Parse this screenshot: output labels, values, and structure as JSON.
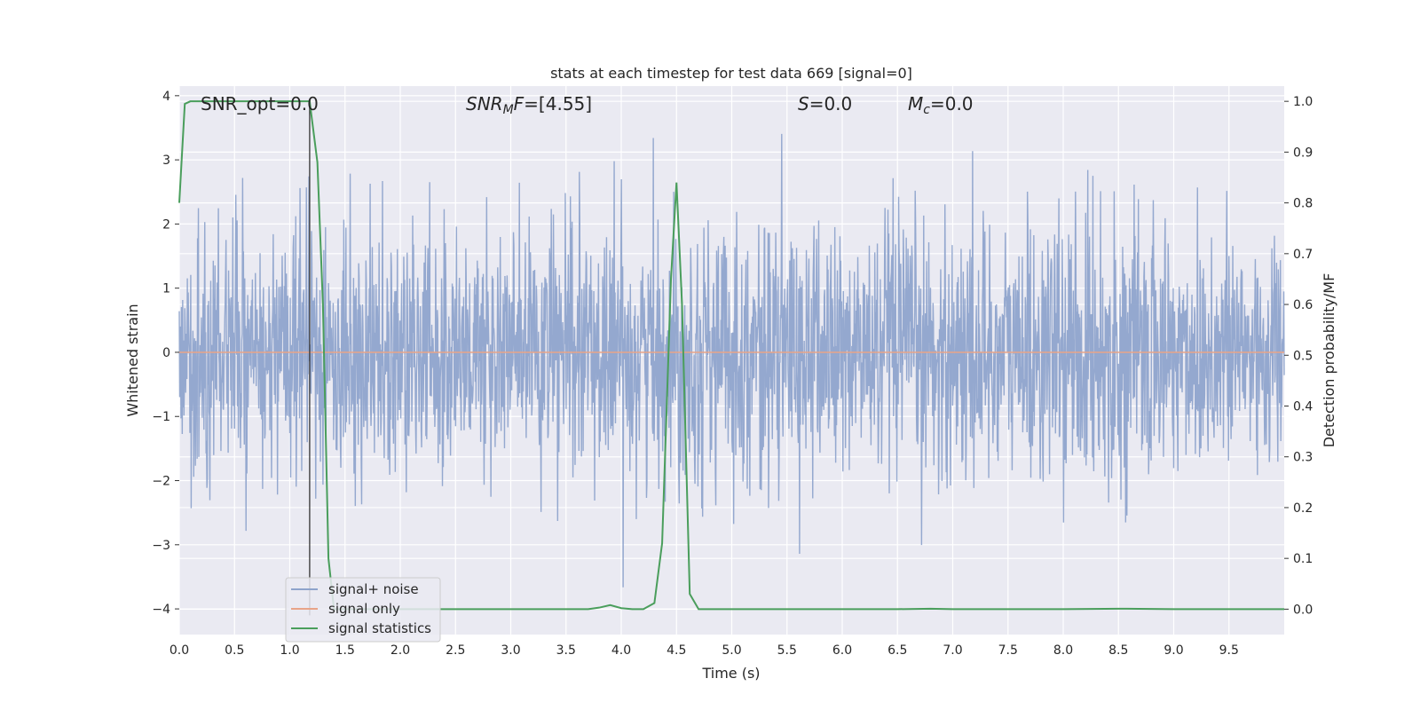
{
  "chart_data": {
    "type": "line",
    "title": "stats at each timestep for test data 669 [signal=0]",
    "xlabel": "Time (s)",
    "ylabel": "Whitened strain",
    "y2label": "Detection probability/MF",
    "xlim": [
      0,
      10
    ],
    "ylim": [
      -4.4,
      4.15
    ],
    "y2lim": [
      -0.05,
      1.03
    ],
    "xticks": [
      "0.0",
      "0.5",
      "1.0",
      "1.5",
      "2.0",
      "2.5",
      "3.0",
      "3.5",
      "4.0",
      "4.5",
      "5.0",
      "5.5",
      "6.0",
      "6.5",
      "7.0",
      "7.5",
      "8.0",
      "8.5",
      "9.0",
      "9.5"
    ],
    "yticks": [
      "−4",
      "−3",
      "−2",
      "−1",
      "0",
      "1",
      "2",
      "3",
      "4"
    ],
    "y2ticks": [
      "0.0",
      "0.1",
      "0.2",
      "0.3",
      "0.4",
      "0.5",
      "0.6",
      "0.7",
      "0.8",
      "0.9",
      "1.0"
    ],
    "grid": true,
    "legend_position": "lower-left",
    "annotations": {
      "snr_opt": "SNR_opt=0.0",
      "snr_mf": "=[4.55]",
      "snr_mf_sym": "SNR",
      "snr_mf_sub": "M",
      "snr_mf_sym2": "F",
      "s_sym": "S",
      "s_val": "=0.0",
      "mc_sym": "M",
      "mc_sub": "c",
      "mc_val": "=0.0"
    },
    "marker_line_x": 1.18,
    "series": [
      {
        "name": "signal+ noise",
        "color": "#8fa4cc",
        "description_kind": "noise",
        "amplitude_envelope": [
          -3.8,
          3.8
        ]
      },
      {
        "name": "signal only",
        "color": "#e8a488",
        "x": [
          0,
          10
        ],
        "y": [
          0,
          0
        ]
      },
      {
        "name": "signal statistics",
        "color": "#4a9e5c",
        "axis": "right",
        "x": [
          0.0,
          0.05,
          0.1,
          0.2,
          0.3,
          0.5,
          0.7,
          0.9,
          1.0,
          1.1,
          1.18,
          1.25,
          1.3,
          1.35,
          1.4,
          1.6,
          2.0,
          2.5,
          3.0,
          3.5,
          3.7,
          3.8,
          3.9,
          4.0,
          4.1,
          4.2,
          4.3,
          4.37,
          4.45,
          4.5,
          4.55,
          4.62,
          4.7,
          4.8,
          5.0,
          6.0,
          6.5,
          6.8,
          7.0,
          8.0,
          8.5,
          9.0,
          9.5,
          10.0
        ],
        "y": [
          0.8,
          0.995,
          1.0,
          1.0,
          1.0,
          1.0,
          1.0,
          1.0,
          1.0,
          1.0,
          1.0,
          0.88,
          0.6,
          0.1,
          0.0,
          0.0,
          0.0,
          0.0,
          0.0,
          0.0,
          0.0,
          0.003,
          0.008,
          0.002,
          0.0,
          0.0,
          0.012,
          0.13,
          0.65,
          0.84,
          0.6,
          0.03,
          0.0,
          0.0,
          0.0,
          0.0,
          0.0,
          0.001,
          0.0,
          0.0,
          0.001,
          0.0,
          0.0,
          0.0
        ]
      }
    ]
  }
}
